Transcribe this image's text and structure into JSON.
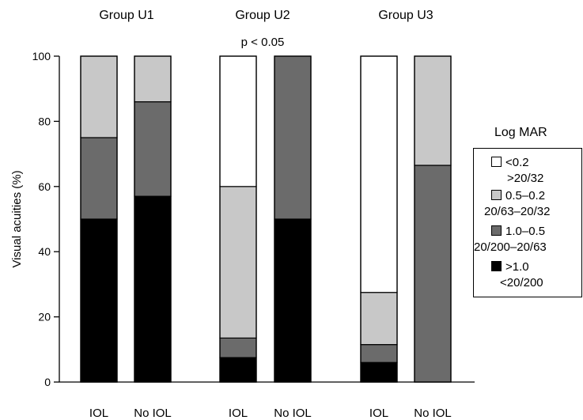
{
  "chart_data": {
    "type": "bar",
    "stacked": true,
    "ylabel": "Visual acuities (%)",
    "ylim": [
      0,
      100
    ],
    "yticks": [
      0,
      20,
      40,
      60,
      80,
      100
    ],
    "groups": [
      {
        "label": "Group U1",
        "annotation": ""
      },
      {
        "label": "Group U2",
        "annotation": "p < 0.05"
      },
      {
        "label": "Group U3",
        "annotation": ""
      }
    ],
    "categories": [
      "IOL",
      "No IOL",
      "IOL",
      "No IOL",
      "IOL",
      "No IOL"
    ],
    "series": [
      {
        "name": ">1.0 <20/200",
        "color": "#000000",
        "values": [
          50,
          57,
          7.5,
          50,
          6,
          0
        ]
      },
      {
        "name": "1.0–0.5 20/200–20/63",
        "color": "#6b6b6b",
        "values": [
          25,
          29,
          6,
          50,
          5.5,
          66.5
        ]
      },
      {
        "name": "0.5–0.2 20/63–20/32",
        "color": "#c8c8c8",
        "values": [
          25,
          14,
          46.5,
          0,
          16,
          33.5
        ]
      },
      {
        "name": "<0.2 >20/32",
        "color": "#ffffff",
        "values": [
          0,
          0,
          40,
          0,
          72.5,
          0
        ]
      }
    ],
    "legend": {
      "title": "Log MAR",
      "position": "right",
      "items": [
        {
          "line1": "<0.2",
          "line2": ">20/32",
          "color": "#ffffff"
        },
        {
          "line1": "0.5–0.2",
          "line2": "20/63–20/32",
          "color": "#c8c8c8"
        },
        {
          "line1": "1.0–0.5",
          "line2": "20/200–20/63",
          "color": "#6b6b6b"
        },
        {
          "line1": ">1.0",
          "line2": "<20/200",
          "color": "#000000"
        }
      ]
    }
  }
}
